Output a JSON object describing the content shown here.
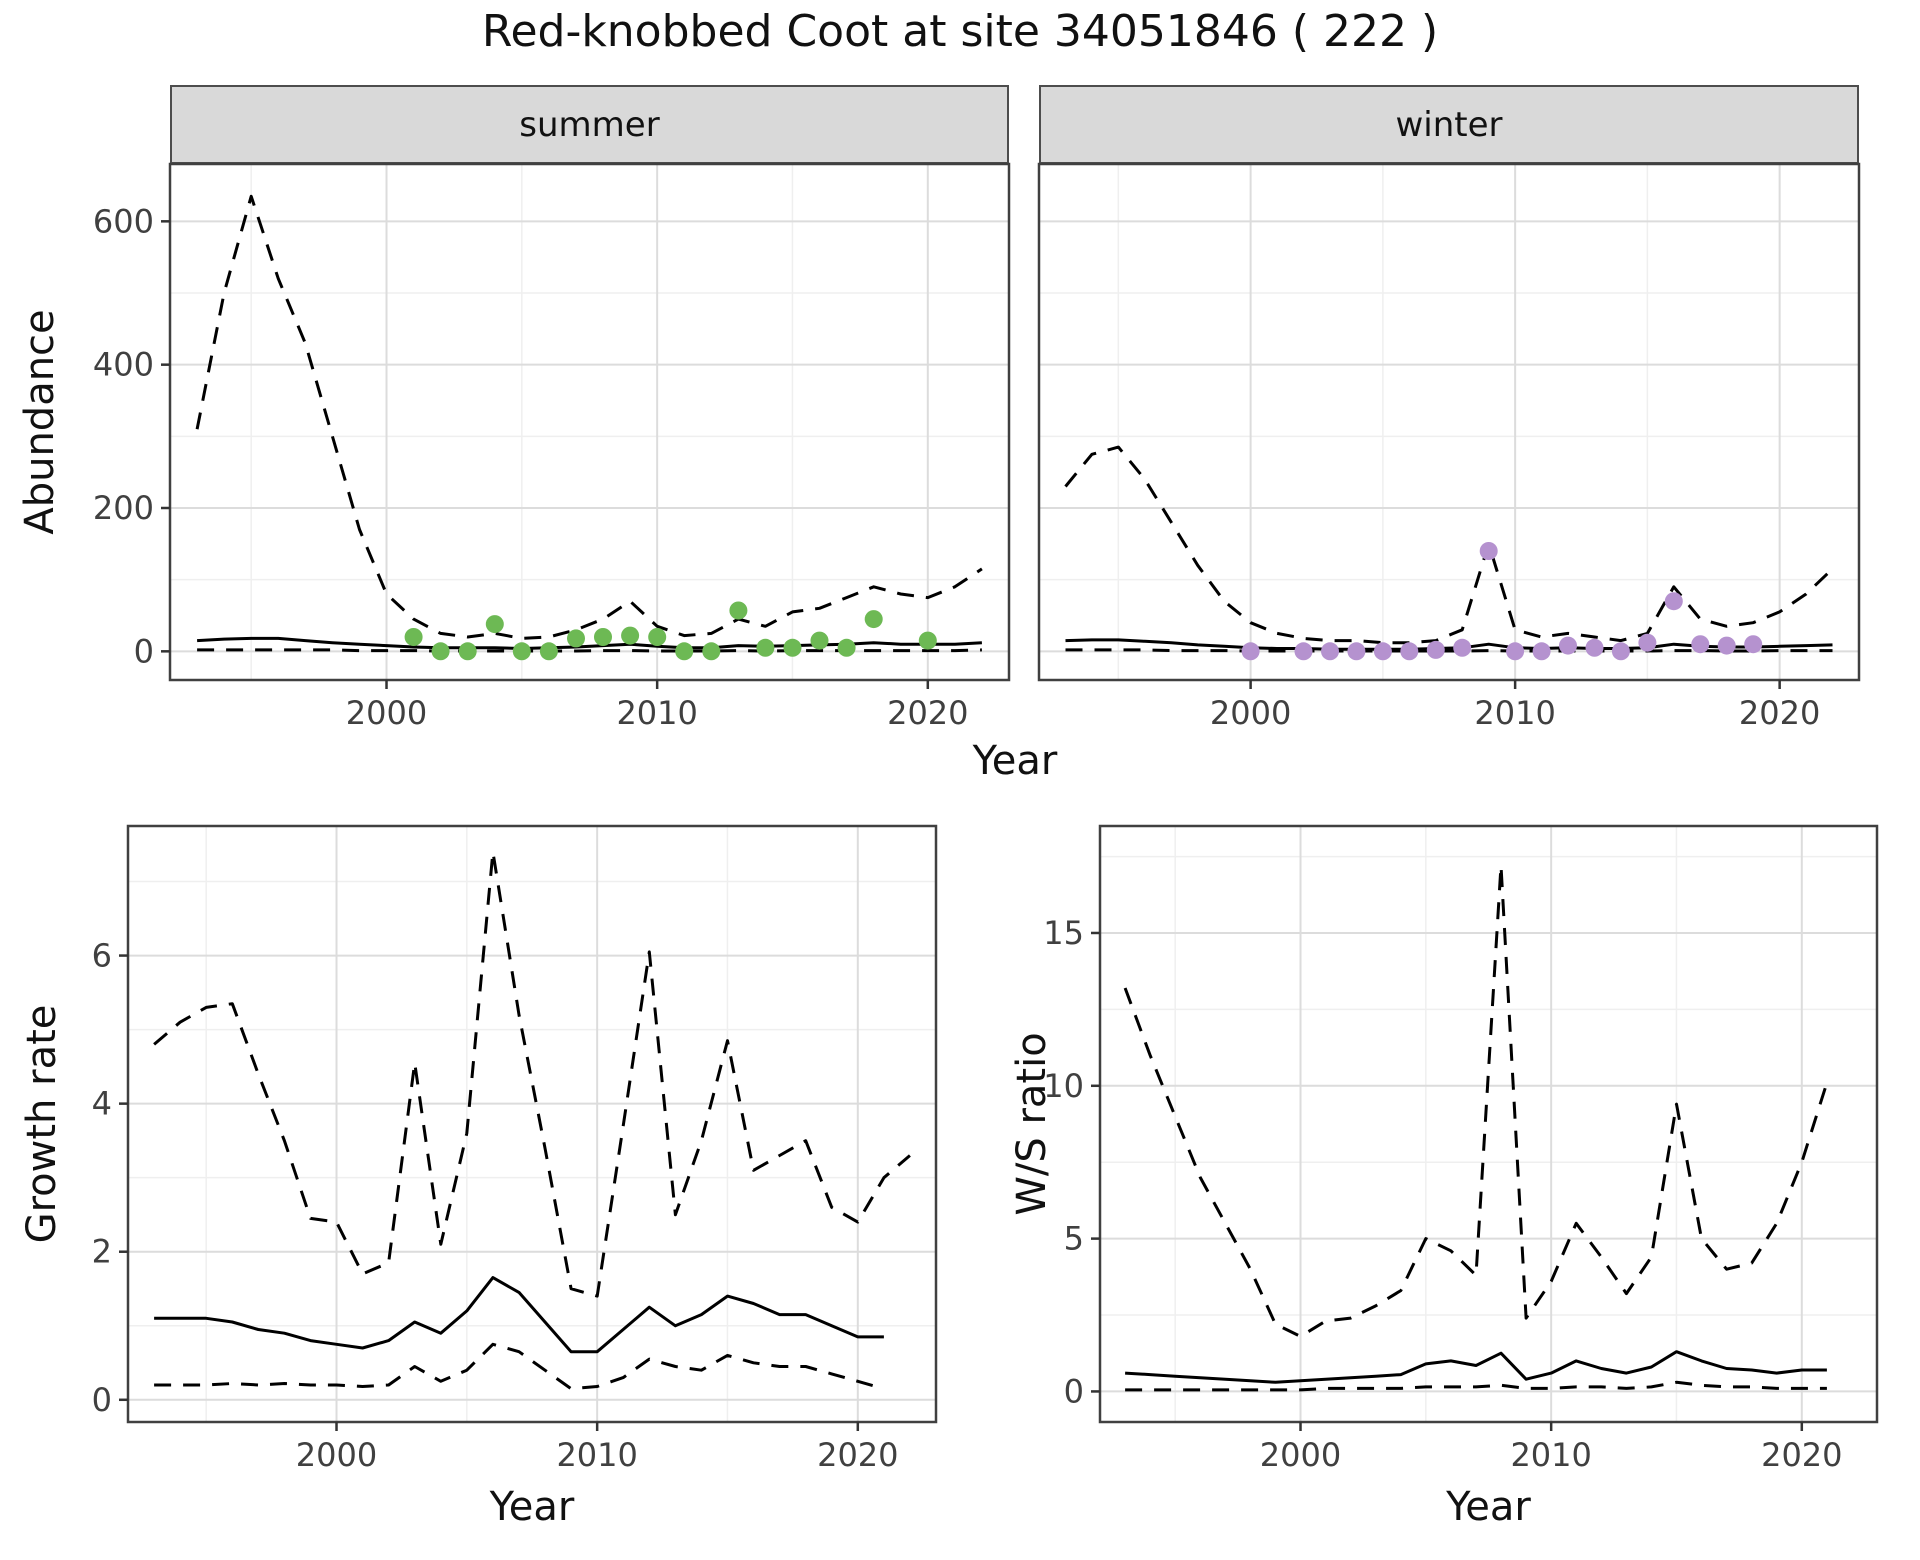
{
  "title": "Red-knobbed Coot at site 34051846 ( 222 )",
  "facets": {
    "summer": "summer",
    "winter": "winter"
  },
  "axis_labels": {
    "abundance": "Abundance",
    "year": "Year",
    "growth_rate": "Growth rate",
    "ws_ratio": "W/S ratio"
  },
  "colors": {
    "line": "#000000",
    "summer_points": "#6db954",
    "winter_points": "#b592cf",
    "grid_major": "#dcdcdc",
    "grid_minor": "#efefef",
    "panel_border": "#404040",
    "strip_bg": "#d9d9d9",
    "tick": "#333333",
    "tick_text": "#404040"
  },
  "chart_data": [
    {
      "id": "abundance-summer",
      "type": "line",
      "facet": "summer",
      "xlabel": "Year",
      "ylabel": "Abundance",
      "xlim": [
        1992,
        2023
      ],
      "ylim": [
        -40,
        680
      ],
      "xticks": [
        2000,
        2010,
        2020
      ],
      "yticks": [
        0,
        200,
        400,
        600
      ],
      "xminor": [
        1995,
        2005,
        2015
      ],
      "yminor": [
        100,
        300,
        500
      ],
      "series": [
        {
          "name": "ci-upper",
          "style": "dashed",
          "years": [
            1993,
            1994,
            1995,
            1996,
            1997,
            1998,
            1999,
            2000,
            2001,
            2002,
            2003,
            2004,
            2005,
            2006,
            2007,
            2008,
            2009,
            2010,
            2011,
            2012,
            2013,
            2014,
            2015,
            2016,
            2017,
            2018,
            2019,
            2020,
            2021,
            2022
          ],
          "values": [
            310,
            500,
            635,
            520,
            430,
            300,
            170,
            80,
            45,
            25,
            20,
            25,
            18,
            20,
            30,
            45,
            70,
            35,
            22,
            25,
            45,
            35,
            55,
            60,
            75,
            90,
            80,
            75,
            90,
            115
          ]
        },
        {
          "name": "median",
          "style": "solid",
          "years": [
            1993,
            1994,
            1995,
            1996,
            1997,
            1998,
            1999,
            2000,
            2001,
            2002,
            2003,
            2004,
            2005,
            2006,
            2007,
            2008,
            2009,
            2010,
            2011,
            2012,
            2013,
            2014,
            2015,
            2016,
            2017,
            2018,
            2019,
            2020,
            2021,
            2022
          ],
          "values": [
            15,
            17,
            18,
            18,
            15,
            12,
            10,
            8,
            6,
            5,
            5,
            5,
            4,
            5,
            6,
            8,
            10,
            7,
            5,
            5,
            8,
            7,
            8,
            9,
            10,
            12,
            10,
            10,
            10,
            12
          ]
        },
        {
          "name": "ci-lower",
          "style": "dashed",
          "years": [
            1993,
            1994,
            1995,
            1996,
            1997,
            1998,
            1999,
            2000,
            2001,
            2002,
            2003,
            2004,
            2005,
            2006,
            2007,
            2008,
            2009,
            2010,
            2011,
            2012,
            2013,
            2014,
            2015,
            2016,
            2017,
            2018,
            2019,
            2020,
            2021,
            2022
          ],
          "values": [
            2,
            2,
            2,
            2,
            2,
            2,
            1,
            1,
            1,
            0.5,
            0.5,
            0.5,
            0.5,
            0.5,
            0.5,
            1,
            1,
            0.5,
            0.5,
            0.5,
            1,
            0.5,
            1,
            1,
            1,
            1,
            1,
            1,
            1,
            2
          ]
        }
      ],
      "points": {
        "name": "summer-observed",
        "color": "#6db954",
        "years": [
          2001,
          2002,
          2003,
          2004,
          2005,
          2006,
          2007,
          2008,
          2009,
          2010,
          2011,
          2012,
          2013,
          2014,
          2015,
          2016,
          2017,
          2018,
          2020
        ],
        "values": [
          20,
          0,
          0,
          38,
          0,
          0,
          18,
          20,
          22,
          20,
          0,
          0,
          57,
          5,
          5,
          15,
          5,
          45,
          15
        ]
      }
    },
    {
      "id": "abundance-winter",
      "type": "line",
      "facet": "winter",
      "xlabel": "Year",
      "ylabel": "Abundance",
      "xlim": [
        1992,
        2023
      ],
      "ylim": [
        -40,
        680
      ],
      "xticks": [
        2000,
        2010,
        2020
      ],
      "yticks": [
        0,
        200,
        400,
        600
      ],
      "xminor": [
        1995,
        2005,
        2015
      ],
      "yminor": [
        100,
        300,
        500
      ],
      "series": [
        {
          "name": "ci-upper",
          "style": "dashed",
          "years": [
            1993,
            1994,
            1995,
            1996,
            1997,
            1998,
            1999,
            2000,
            2001,
            2002,
            2003,
            2004,
            2005,
            2006,
            2007,
            2008,
            2009,
            2010,
            2011,
            2012,
            2013,
            2014,
            2015,
            2016,
            2017,
            2018,
            2019,
            2020,
            2021,
            2022
          ],
          "values": [
            230,
            275,
            285,
            240,
            180,
            120,
            70,
            40,
            25,
            18,
            15,
            15,
            12,
            12,
            15,
            30,
            150,
            30,
            20,
            25,
            20,
            15,
            25,
            90,
            45,
            35,
            40,
            55,
            80,
            115
          ]
        },
        {
          "name": "median",
          "style": "solid",
          "years": [
            1993,
            1994,
            1995,
            1996,
            1997,
            1998,
            1999,
            2000,
            2001,
            2002,
            2003,
            2004,
            2005,
            2006,
            2007,
            2008,
            2009,
            2010,
            2011,
            2012,
            2013,
            2014,
            2015,
            2016,
            2017,
            2018,
            2019,
            2020,
            2021,
            2022
          ],
          "values": [
            15,
            16,
            16,
            14,
            12,
            9,
            7,
            5,
            4,
            4,
            3,
            3,
            3,
            3,
            4,
            5,
            10,
            5,
            4,
            5,
            4,
            4,
            5,
            10,
            7,
            6,
            6,
            7,
            8,
            9
          ]
        },
        {
          "name": "ci-lower",
          "style": "dashed",
          "years": [
            1993,
            1994,
            1995,
            1996,
            1997,
            1998,
            1999,
            2000,
            2001,
            2002,
            2003,
            2004,
            2005,
            2006,
            2007,
            2008,
            2009,
            2010,
            2011,
            2012,
            2013,
            2014,
            2015,
            2016,
            2017,
            2018,
            2019,
            2020,
            2021,
            2022
          ],
          "values": [
            2,
            2,
            2,
            2,
            1,
            1,
            1,
            0.5,
            0.5,
            0.5,
            0.5,
            0.5,
            0.5,
            0.5,
            0.5,
            0.5,
            1,
            0.5,
            0.5,
            0.5,
            0.5,
            0.5,
            0.5,
            1,
            1,
            0.5,
            0.5,
            1,
            1,
            1
          ]
        }
      ],
      "points": {
        "name": "winter-observed",
        "color": "#b592cf",
        "years": [
          2000,
          2002,
          2003,
          2004,
          2005,
          2006,
          2007,
          2008,
          2009,
          2010,
          2011,
          2012,
          2013,
          2014,
          2015,
          2016,
          2017,
          2018,
          2019
        ],
        "values": [
          0,
          0,
          0,
          0,
          0,
          0,
          2,
          5,
          140,
          0,
          0,
          8,
          5,
          0,
          12,
          70,
          10,
          8,
          10
        ]
      }
    },
    {
      "id": "growth-rate",
      "type": "line",
      "xlabel": "Year",
      "ylabel": "Growth rate",
      "xlim": [
        1992,
        2023
      ],
      "ylim": [
        -0.3,
        7.75
      ],
      "xticks": [
        2000,
        2010,
        2020
      ],
      "yticks": [
        0,
        2,
        4,
        6
      ],
      "xminor": [
        1995,
        2005,
        2015
      ],
      "yminor": [
        1,
        3,
        5,
        7
      ],
      "series": [
        {
          "name": "ci-upper",
          "style": "dashed",
          "years": [
            1993,
            1994,
            1995,
            1996,
            1997,
            1998,
            1999,
            2000,
            2001,
            2002,
            2003,
            2004,
            2005,
            2006,
            2007,
            2008,
            2009,
            2010,
            2011,
            2012,
            2013,
            2014,
            2015,
            2016,
            2017,
            2018,
            2019,
            2020,
            2021,
            2022
          ],
          "values": [
            4.8,
            5.1,
            5.3,
            5.35,
            4.4,
            3.5,
            2.45,
            2.4,
            1.7,
            1.85,
            4.55,
            2.1,
            3.6,
            7.4,
            5.2,
            3.4,
            1.5,
            1.4,
            3.7,
            6.05,
            2.5,
            3.5,
            4.85,
            3.1,
            3.3,
            3.5,
            2.6,
            2.4,
            3.0,
            3.3
          ]
        },
        {
          "name": "median",
          "style": "solid",
          "years": [
            1993,
            1994,
            1995,
            1996,
            1997,
            1998,
            1999,
            2000,
            2001,
            2002,
            2003,
            2004,
            2005,
            2006,
            2007,
            2008,
            2009,
            2010,
            2011,
            2012,
            2013,
            2014,
            2015,
            2016,
            2017,
            2018,
            2019,
            2020,
            2021
          ],
          "values": [
            1.1,
            1.1,
            1.1,
            1.05,
            0.95,
            0.9,
            0.8,
            0.75,
            0.7,
            0.8,
            1.05,
            0.9,
            1.2,
            1.65,
            1.45,
            1.05,
            0.65,
            0.65,
            0.95,
            1.25,
            1.0,
            1.15,
            1.4,
            1.3,
            1.15,
            1.15,
            1.0,
            0.85,
            0.85
          ]
        },
        {
          "name": "ci-lower",
          "style": "dashed",
          "years": [
            1993,
            1994,
            1995,
            1996,
            1997,
            1998,
            1999,
            2000,
            2001,
            2002,
            2003,
            2004,
            2005,
            2006,
            2007,
            2008,
            2009,
            2010,
            2011,
            2012,
            2013,
            2014,
            2015,
            2016,
            2017,
            2018,
            2019,
            2020,
            2021
          ],
          "values": [
            0.2,
            0.2,
            0.2,
            0.22,
            0.2,
            0.22,
            0.2,
            0.2,
            0.18,
            0.2,
            0.45,
            0.25,
            0.4,
            0.75,
            0.65,
            0.4,
            0.15,
            0.18,
            0.3,
            0.55,
            0.45,
            0.4,
            0.6,
            0.5,
            0.45,
            0.45,
            0.35,
            0.25,
            0.15
          ]
        }
      ]
    },
    {
      "id": "ws-ratio",
      "type": "line",
      "xlabel": "Year",
      "ylabel": "W/S ratio",
      "xlim": [
        1992,
        2023
      ],
      "ylim": [
        -1,
        18.5
      ],
      "xticks": [
        2000,
        2010,
        2020
      ],
      "yticks": [
        0,
        5,
        10,
        15
      ],
      "xminor": [
        1995,
        2005,
        2015
      ],
      "yminor": [
        2.5,
        7.5,
        12.5,
        17.5
      ],
      "series": [
        {
          "name": "ci-upper",
          "style": "dashed",
          "years": [
            1993,
            1994,
            1995,
            1996,
            1997,
            1998,
            1999,
            2000,
            2001,
            2002,
            2003,
            2004,
            2005,
            2006,
            2007,
            2008,
            2009,
            2010,
            2011,
            2012,
            2013,
            2014,
            2015,
            2016,
            2017,
            2018,
            2019,
            2020,
            2021
          ],
          "values": [
            13.2,
            11.0,
            9.0,
            7.0,
            5.5,
            4.0,
            2.2,
            1.8,
            2.3,
            2.4,
            2.8,
            3.3,
            5.0,
            4.6,
            3.8,
            17.2,
            2.4,
            3.6,
            5.5,
            4.4,
            3.2,
            4.4,
            9.4,
            5.0,
            4.0,
            4.2,
            5.5,
            7.5,
            10.1
          ]
        },
        {
          "name": "median",
          "style": "solid",
          "years": [
            1993,
            1994,
            1995,
            1996,
            1997,
            1998,
            1999,
            2000,
            2001,
            2002,
            2003,
            2004,
            2005,
            2006,
            2007,
            2008,
            2009,
            2010,
            2011,
            2012,
            2013,
            2014,
            2015,
            2016,
            2017,
            2018,
            2019,
            2020,
            2021
          ],
          "values": [
            0.6,
            0.55,
            0.5,
            0.45,
            0.4,
            0.35,
            0.3,
            0.35,
            0.4,
            0.45,
            0.5,
            0.55,
            0.9,
            1.0,
            0.85,
            1.25,
            0.4,
            0.6,
            1.0,
            0.75,
            0.6,
            0.8,
            1.3,
            1.0,
            0.75,
            0.7,
            0.6,
            0.7,
            0.7
          ]
        },
        {
          "name": "ci-lower",
          "style": "dashed",
          "years": [
            1993,
            1994,
            1995,
            1996,
            1997,
            1998,
            1999,
            2000,
            2001,
            2002,
            2003,
            2004,
            2005,
            2006,
            2007,
            2008,
            2009,
            2010,
            2011,
            2012,
            2013,
            2014,
            2015,
            2016,
            2017,
            2018,
            2019,
            2020,
            2021
          ],
          "values": [
            0.05,
            0.05,
            0.05,
            0.05,
            0.05,
            0.05,
            0.05,
            0.05,
            0.1,
            0.1,
            0.1,
            0.1,
            0.15,
            0.15,
            0.15,
            0.2,
            0.1,
            0.1,
            0.15,
            0.15,
            0.1,
            0.15,
            0.3,
            0.2,
            0.15,
            0.15,
            0.1,
            0.1,
            0.1
          ]
        }
      ]
    }
  ]
}
